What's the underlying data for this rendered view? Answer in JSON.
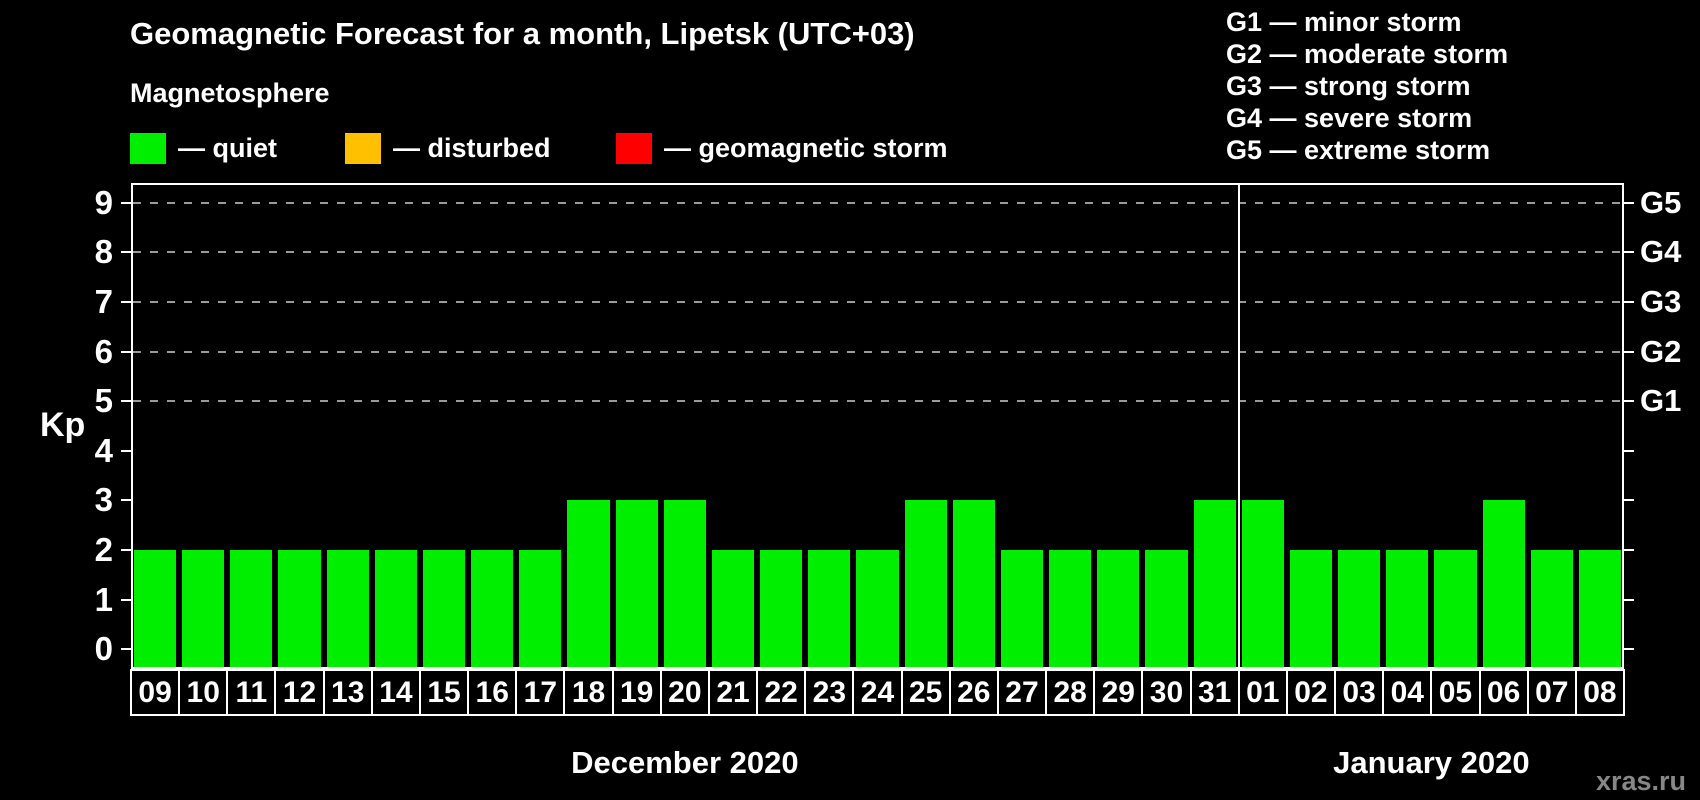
{
  "header": {
    "title": "Geomagnetic Forecast for a month, Lipetsk (UTC+03)",
    "subtitle": "Magnetosphere"
  },
  "legend": {
    "items": [
      {
        "label": "— quiet",
        "color": "#00ee00"
      },
      {
        "label": "— disturbed",
        "color": "#ffc000"
      },
      {
        "label": "— geomagnetic storm",
        "color": "#ff0000"
      }
    ]
  },
  "storm_scale": {
    "lines": [
      "G1 — minor storm",
      "G2 — moderate storm",
      "G3 — strong storm",
      "G4 — severe storm",
      "G5 — extreme storm"
    ]
  },
  "watermark": "xras.ru",
  "chart_data": {
    "type": "bar",
    "title": "Geomagnetic Forecast for a month, Lipetsk (UTC+03)",
    "ylabel": "Kp",
    "ylim": [
      -0.4,
      9.4
    ],
    "yticks": [
      0,
      1,
      2,
      3,
      4,
      5,
      6,
      7,
      8,
      9
    ],
    "gridlines_at": [
      5,
      6,
      7,
      8,
      9
    ],
    "grid": "dashed-horizontal",
    "legend_position": "top",
    "right_axis": [
      {
        "kp": 9,
        "label": "G5"
      },
      {
        "kp": 8,
        "label": "G4"
      },
      {
        "kp": 7,
        "label": "G3"
      },
      {
        "kp": 6,
        "label": "G2"
      },
      {
        "kp": 5,
        "label": "G1"
      }
    ],
    "bar_color": "#00ee00",
    "categories": [
      "09",
      "10",
      "11",
      "12",
      "13",
      "14",
      "15",
      "16",
      "17",
      "18",
      "19",
      "20",
      "21",
      "22",
      "23",
      "24",
      "25",
      "26",
      "27",
      "28",
      "29",
      "30",
      "31",
      "01",
      "02",
      "03",
      "04",
      "05",
      "06",
      "07",
      "08"
    ],
    "values": [
      2,
      2,
      2,
      2,
      2,
      2,
      2,
      2,
      2,
      3,
      3,
      3,
      2,
      2,
      2,
      2,
      3,
      3,
      2,
      2,
      2,
      2,
      3,
      3,
      2,
      2,
      2,
      2,
      3,
      2,
      2
    ],
    "months": [
      {
        "label": "December 2020",
        "days": 23
      },
      {
        "label": "January 2020",
        "days": 8
      }
    ]
  }
}
